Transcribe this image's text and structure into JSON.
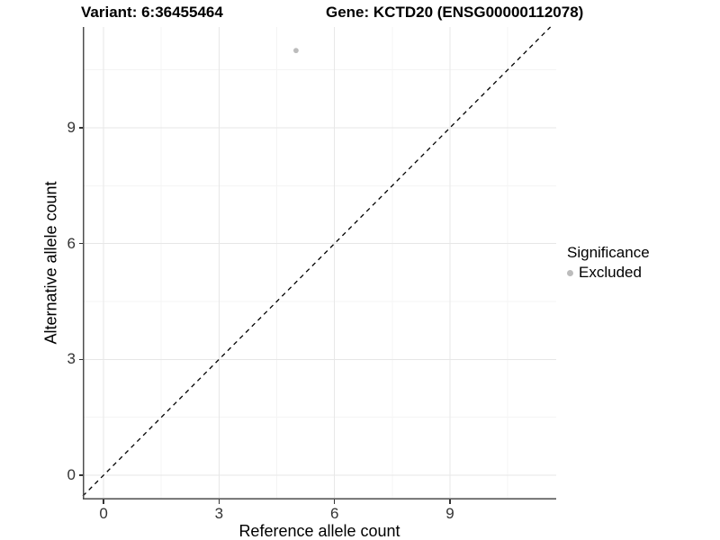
{
  "chart_data": {
    "type": "scatter",
    "titles": {
      "left": "Variant: 6:36455464",
      "right": "Gene: KCTD20 (ENSG00000112078)"
    },
    "xlabel": "Reference allele count",
    "ylabel": "Alternative allele count",
    "xlim": [
      -0.54,
      11.76
    ],
    "ylim": [
      -0.63,
      11.61
    ],
    "x_major_ticks": [
      0,
      3,
      6,
      9
    ],
    "y_major_ticks": [
      0,
      3,
      6,
      9
    ],
    "x_minor_ticks": [
      1.5,
      4.5,
      7.5,
      10.5
    ],
    "y_minor_ticks": [
      1.5,
      4.5,
      7.5,
      10.5
    ],
    "series": [
      {
        "name": "Excluded",
        "color": "#bcbcbc",
        "points": [
          {
            "x": 5,
            "y": 11
          }
        ]
      }
    ],
    "reference_line": {
      "kind": "identity y=x",
      "style": "dashed",
      "color": "#000000"
    },
    "legend": {
      "title": "Significance",
      "position": "right",
      "items": [
        {
          "label": "Excluded",
          "color": "#bcbcbc"
        }
      ]
    },
    "grid": {
      "major_color": "#e7e7e7",
      "minor_color": "#f4f4f4"
    },
    "axis_line_color": "#4d4d4d",
    "background": "#ffffff"
  }
}
